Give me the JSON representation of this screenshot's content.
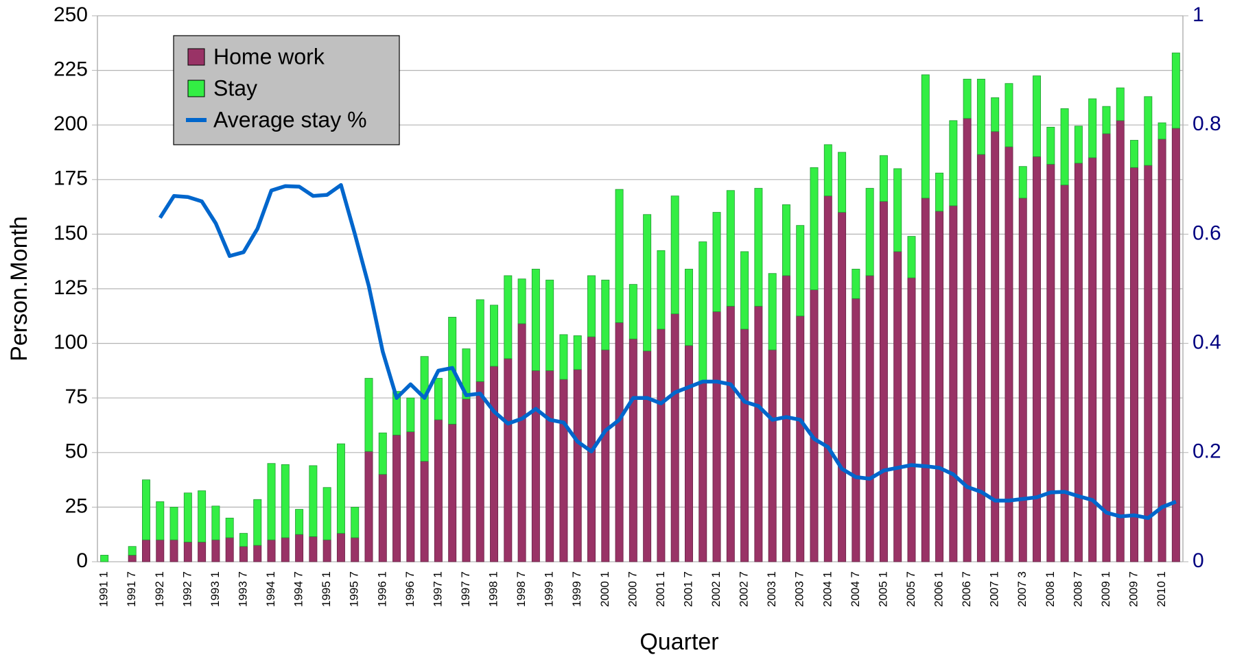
{
  "chart_data": {
    "type": "bar",
    "stacked": true,
    "x_label": "Quarter",
    "y_label": "Person.Month",
    "legend": "upper left",
    "grid": true,
    "categories": [
      "1991 1",
      null,
      "1991 7",
      null,
      "1992 1",
      null,
      "1992 7",
      null,
      "1993 1",
      null,
      "1993 7",
      null,
      "1994 1",
      null,
      "1994 7",
      null,
      "1995 1",
      null,
      "1995 7",
      null,
      "1996 1",
      null,
      "1996 7",
      null,
      "1997 1",
      null,
      "1997 7",
      null,
      "1998 1",
      null,
      "1998 7",
      null,
      "1999 1",
      null,
      "1999 7",
      null,
      "2000 1",
      null,
      "2000 7",
      null,
      "2001 1",
      null,
      "2001 7",
      null,
      "2002 1",
      null,
      "2002 7",
      null,
      "2003 1",
      null,
      "2003 7",
      null,
      "2004 1",
      null,
      "2004 7",
      null,
      "2005 1",
      null,
      "2005 7",
      null,
      "2006 1",
      null,
      "2006 7",
      null,
      "2007 1",
      null,
      "2007 3",
      null,
      "2008 1",
      null,
      "2008 7",
      null,
      "2009 1",
      null,
      "2009 7",
      null,
      "2010 1",
      null
    ],
    "series": [
      {
        "name": "Home work",
        "color": "#993366",
        "values": [
          0,
          0,
          3,
          10,
          10,
          10,
          9,
          9,
          10,
          11,
          7,
          7.5,
          10,
          11,
          12.5,
          11.5,
          10,
          13,
          11,
          50.5,
          40,
          58,
          59.5,
          46,
          65,
          63,
          74.5,
          82.5,
          89.5,
          93,
          109,
          87.5,
          87.5,
          83.5,
          88,
          103,
          97,
          109.5,
          102,
          96.5,
          106.5,
          113.5,
          99,
          82,
          114.5,
          117,
          106.5,
          117,
          97,
          131,
          112.5,
          124.5,
          167.5,
          160,
          120.5,
          131,
          165,
          142,
          130,
          166.5,
          160.5,
          163,
          203,
          186.5,
          197,
          190,
          166.5,
          185.5,
          182,
          172.5,
          182.5,
          185,
          196,
          202,
          180.5,
          181.5,
          193.5,
          198.5
        ]
      },
      {
        "name": "Stay",
        "color": "#33ee44",
        "values": [
          3,
          0,
          4,
          27.5,
          17.5,
          15,
          22.5,
          23.5,
          15.5,
          9,
          6,
          21,
          35,
          33.5,
          11.5,
          32.5,
          24,
          41,
          14,
          33.5,
          19,
          20,
          15.5,
          48,
          19,
          49,
          23,
          37.5,
          28,
          38,
          20.5,
          46.5,
          41.5,
          20.5,
          15.5,
          28,
          32,
          61,
          25,
          62.5,
          36,
          54,
          35,
          64.5,
          45.5,
          53,
          35.5,
          54,
          35,
          32.5,
          41.5,
          56,
          23.5,
          27.5,
          13.5,
          40,
          21,
          38,
          19,
          56.5,
          17.5,
          39,
          18,
          34.5,
          15.5,
          29,
          14.5,
          37,
          17,
          35,
          17,
          27,
          12.5,
          15,
          12.5,
          31.5,
          7.5,
          34.5
        ]
      },
      {
        "name": "Average stay %",
        "type": "line",
        "axis": "y2",
        "color": "#0066cc",
        "values": [
          null,
          null,
          null,
          null,
          0.63,
          0.67,
          0.668,
          0.66,
          0.62,
          0.56,
          0.567,
          0.61,
          0.68,
          0.688,
          0.687,
          0.67,
          0.672,
          0.69,
          0.6,
          0.505,
          0.385,
          0.3,
          0.325,
          0.3,
          0.35,
          0.355,
          0.305,
          0.308,
          0.275,
          0.253,
          0.262,
          0.28,
          0.26,
          0.255,
          0.22,
          0.202,
          0.24,
          0.26,
          0.3,
          0.3,
          0.29,
          0.31,
          0.32,
          0.33,
          0.33,
          0.325,
          0.293,
          0.285,
          0.26,
          0.265,
          0.26,
          0.225,
          0.21,
          0.17,
          0.155,
          0.152,
          0.167,
          0.172,
          0.177,
          0.175,
          0.172,
          0.16,
          0.137,
          0.128,
          0.112,
          0.112,
          0.115,
          0.118,
          0.127,
          0.128,
          0.12,
          0.113,
          0.09,
          0.083,
          0.085,
          0.08,
          0.1,
          0.11
        ]
      }
    ],
    "ylim": [
      0,
      250
    ],
    "yticks": [
      0,
      25,
      50,
      75,
      100,
      125,
      150,
      175,
      200,
      225,
      250
    ],
    "y2lim": [
      0,
      1
    ],
    "y2ticks": [
      0,
      0.2,
      0.4,
      0.6,
      0.8,
      1
    ]
  }
}
